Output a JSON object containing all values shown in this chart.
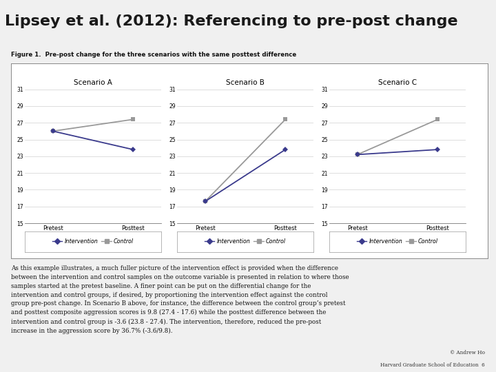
{
  "title": "Lipsey et al. (2012): Referencing to pre-post change",
  "title_bg": "#d4dc9a",
  "title_color": "#1a1a1a",
  "title_fontsize": 16,
  "red_bar_color": "#7a1010",
  "figure_title": "Figure 1.  Pre-post change for the three scenarios with the same posttest difference",
  "scenarios": [
    "Scenario A",
    "Scenario B",
    "Scenario C"
  ],
  "intervention_color": "#3a3a8c",
  "control_color": "#999999",
  "ylim": [
    15,
    31
  ],
  "yticks": [
    15,
    17,
    19,
    21,
    23,
    25,
    27,
    29,
    31
  ],
  "xtick_labels": [
    "Pretest",
    "Posttest"
  ],
  "scenario_A": {
    "intervention": [
      26.0,
      23.8
    ],
    "control": [
      26.0,
      27.4
    ]
  },
  "scenario_B": {
    "intervention": [
      17.6,
      23.8
    ],
    "control": [
      17.6,
      27.4
    ]
  },
  "scenario_C": {
    "intervention": [
      23.2,
      23.8
    ],
    "control": [
      23.2,
      27.4
    ]
  },
  "body_text": "As this example illustrates, a much fuller picture of the intervention effect is provided when the difference\nbetween the intervention and control samples on the outcome variable is presented in relation to where those\nsamples started at the pretest baseline. A finer point can be put on the differential change for the\nintervention and control groups, if desired, by proportioning the intervention effect against the control\ngroup pre-post change. In Scenario B above, for instance, the difference between the control group’s pretest\nand posttest composite aggression scores is 9.8 (27.4 - 17.6) while the posttest difference between the\nintervention and control group is -3.6 (23.8 - 27.4). The intervention, therefore, reduced the pre-post\nincrease in the aggression score by 36.7% (-3.6/9.8).",
  "footer_line1": "© Andrew Ho",
  "footer_line2": "Harvard Graduate School of Education  6",
  "panel_bg": "#ffffff",
  "outer_bg": "#f0f0f0",
  "content_bg": "#ffffff",
  "grid_color": "#d0d0d0",
  "box_border_color": "#888888"
}
